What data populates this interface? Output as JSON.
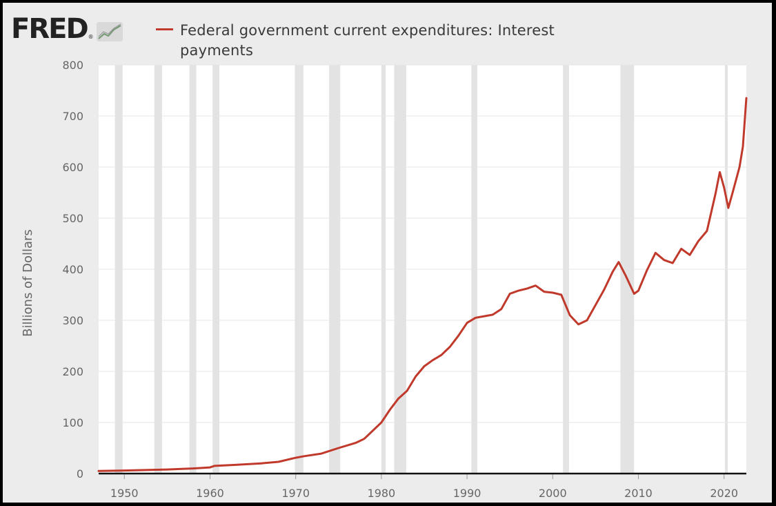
{
  "header": {
    "logo_text": "FRED",
    "logo_registered": "®",
    "logo_icon": "chart-line-icon"
  },
  "colors": {
    "series": "#c0392b",
    "recession": "#e3e3e3",
    "grid": "#e6e6e6",
    "plot_bg": "#ffffff",
    "axis": "#111111"
  },
  "chart_data": {
    "type": "line",
    "title": "",
    "legend_position": "top-left",
    "xlabel": "",
    "ylabel": "Billions of Dollars",
    "xlim": [
      1947,
      2022.6
    ],
    "ylim": [
      0,
      800
    ],
    "grid": true,
    "yticks": [
      0,
      100,
      200,
      300,
      400,
      500,
      600,
      700,
      800
    ],
    "xticks": [
      1950,
      1960,
      1970,
      1980,
      1990,
      2000,
      2010,
      2020
    ],
    "recessions": [
      [
        1948.9,
        1949.8
      ],
      [
        1953.5,
        1954.4
      ],
      [
        1957.6,
        1958.4
      ],
      [
        1960.3,
        1961.1
      ],
      [
        1969.9,
        1970.9
      ],
      [
        1973.9,
        1975.2
      ],
      [
        1980.0,
        1980.5
      ],
      [
        1981.5,
        1982.9
      ],
      [
        1990.5,
        1991.2
      ],
      [
        2001.2,
        2001.9
      ],
      [
        2007.9,
        2009.5
      ],
      [
        2020.1,
        2020.4
      ]
    ],
    "series": [
      {
        "name": "Federal government current expenditures: Interest payments",
        "x": [
          1947,
          1950,
          1955,
          1958,
          1960,
          1960.5,
          1963,
          1966,
          1968,
          1970,
          1971,
          1973,
          1975,
          1977,
          1978,
          1979,
          1980,
          1981,
          1982,
          1983,
          1984,
          1985,
          1986,
          1987,
          1988,
          1989,
          1990,
          1991,
          1992,
          1993,
          1994,
          1995,
          1996,
          1997,
          1998,
          1999,
          2000,
          2001,
          2002,
          2003,
          2004,
          2005,
          2006,
          2007,
          2007.7,
          2008.5,
          2009.5,
          2010,
          2011,
          2012,
          2013,
          2014,
          2015,
          2016,
          2017,
          2018,
          2019,
          2019.5,
          2020,
          2020.5,
          2021,
          2021.8,
          2022.2,
          2022.6
        ],
        "values": [
          5,
          6,
          8,
          10,
          12,
          15,
          17,
          20,
          23,
          31,
          34,
          39,
          50,
          60,
          68,
          84,
          100,
          125,
          147,
          162,
          190,
          210,
          222,
          232,
          248,
          270,
          295,
          305,
          308,
          311,
          322,
          352,
          358,
          362,
          368,
          356,
          354,
          350,
          310,
          292,
          300,
          330,
          360,
          395,
          414,
          388,
          352,
          358,
          398,
          432,
          418,
          412,
          440,
          428,
          455,
          475,
          548,
          590,
          560,
          520,
          550,
          600,
          640,
          735
        ]
      }
    ]
  }
}
